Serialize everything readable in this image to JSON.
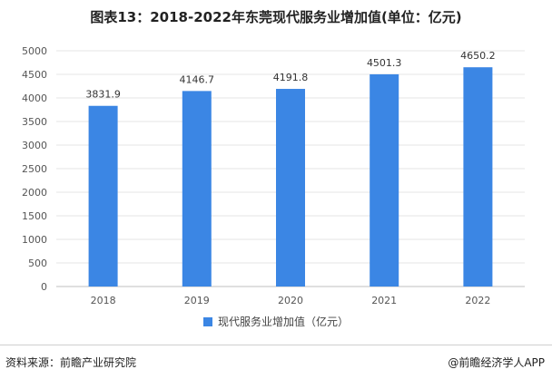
{
  "title": "图表13：2018-2022年东莞现代服务业增加值(单位：亿元)",
  "source": "资料来源：前瞻产业研究院",
  "credit": "@前瞻经济学人APP",
  "colors": {
    "bar": "#3b86e4",
    "grid": "#e6e6e6",
    "axis": "#bfbfbf"
  },
  "chart_data": {
    "type": "bar",
    "title": "图表13：2018-2022年东莞现代服务业增加值(单位：亿元)",
    "categories": [
      "2018",
      "2019",
      "2020",
      "2021",
      "2022"
    ],
    "series": [
      {
        "name": "现代服务业增加值（亿元）",
        "values": [
          3831.9,
          4146.7,
          4191.8,
          4501.3,
          4650.2
        ]
      }
    ],
    "value_labels": [
      "3831.9",
      "4146.7",
      "4191.8",
      "4501.3",
      "4650.2"
    ],
    "xlabel": "",
    "ylabel": "",
    "ylim": [
      0,
      5000
    ],
    "yticks": [
      0,
      500,
      1000,
      1500,
      2000,
      2500,
      3000,
      3500,
      4000,
      4500,
      5000
    ],
    "grid": true,
    "legend": "bottom-center"
  }
}
